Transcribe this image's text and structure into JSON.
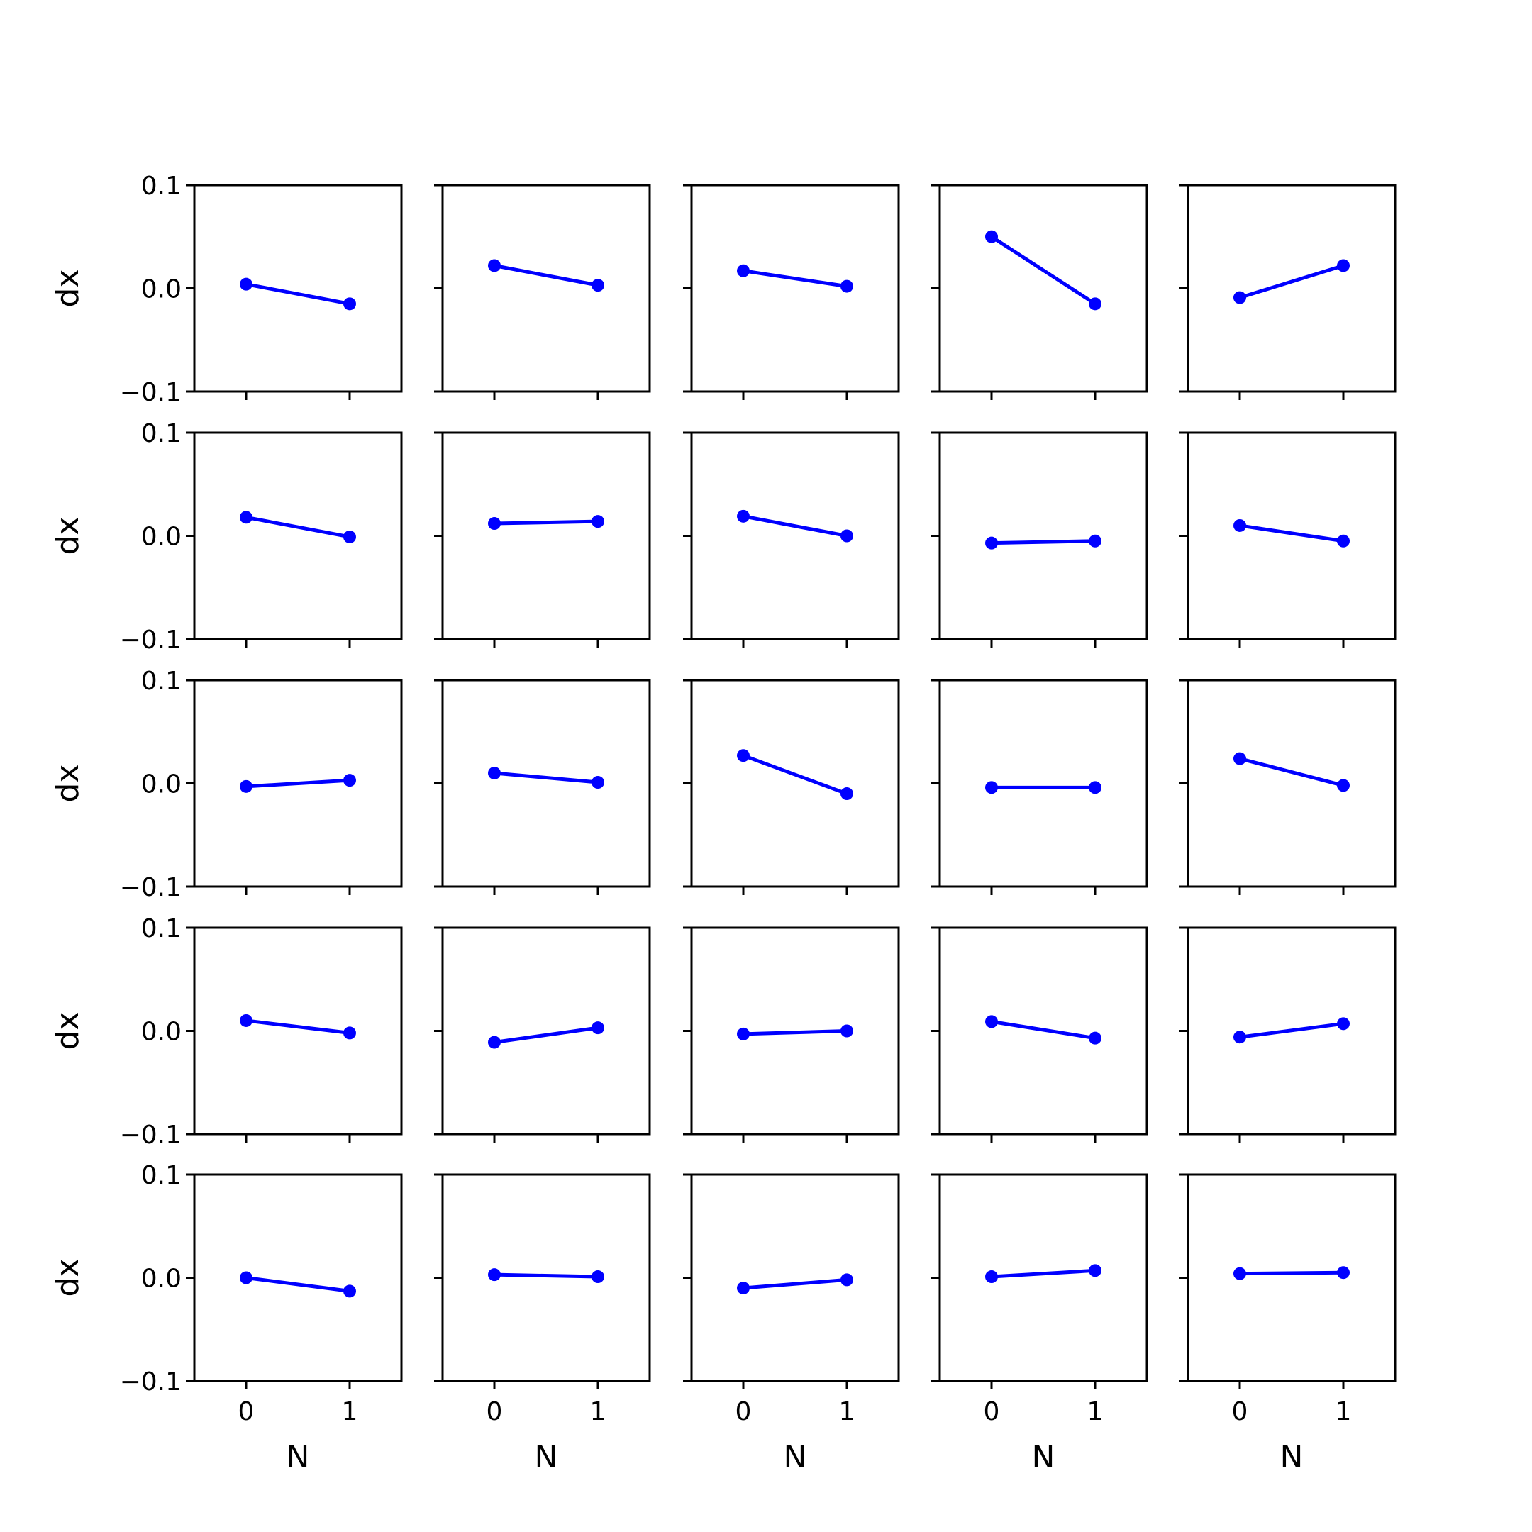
{
  "chart_data": {
    "type": "line",
    "layout": {
      "rows": 5,
      "cols": 5
    },
    "xlabel": "N",
    "ylabel": "dx",
    "xlim": [
      -0.5,
      1.5
    ],
    "ylim": [
      -0.1,
      0.1
    ],
    "xticks": [
      0,
      1
    ],
    "xtick_labels": [
      "0",
      "1"
    ],
    "yticks": [
      -0.1,
      0.0,
      0.1
    ],
    "ytick_labels": [
      "−0.1",
      "0.0",
      "0.1"
    ],
    "grid": false,
    "color": "#0000ff",
    "x": [
      0,
      1
    ],
    "panels": [
      [
        0.004,
        -0.015
      ],
      [
        0.022,
        0.003
      ],
      [
        0.017,
        0.002
      ],
      [
        0.05,
        -0.015
      ],
      [
        -0.009,
        0.022
      ],
      [
        0.018,
        -0.001
      ],
      [
        0.012,
        0.014
      ],
      [
        0.019,
        0.0
      ],
      [
        -0.007,
        -0.005
      ],
      [
        0.01,
        -0.005
      ],
      [
        -0.003,
        0.003
      ],
      [
        0.01,
        0.001
      ],
      [
        0.027,
        -0.01
      ],
      [
        -0.004,
        -0.004
      ],
      [
        0.024,
        -0.002
      ],
      [
        0.01,
        -0.002
      ],
      [
        -0.011,
        0.003
      ],
      [
        -0.003,
        0.0
      ],
      [
        0.009,
        -0.007
      ],
      [
        -0.006,
        0.007
      ],
      [
        0.0,
        -0.013
      ],
      [
        0.003,
        0.001
      ],
      [
        -0.01,
        -0.002
      ],
      [
        0.001,
        0.007
      ],
      [
        0.004,
        0.005
      ]
    ]
  }
}
